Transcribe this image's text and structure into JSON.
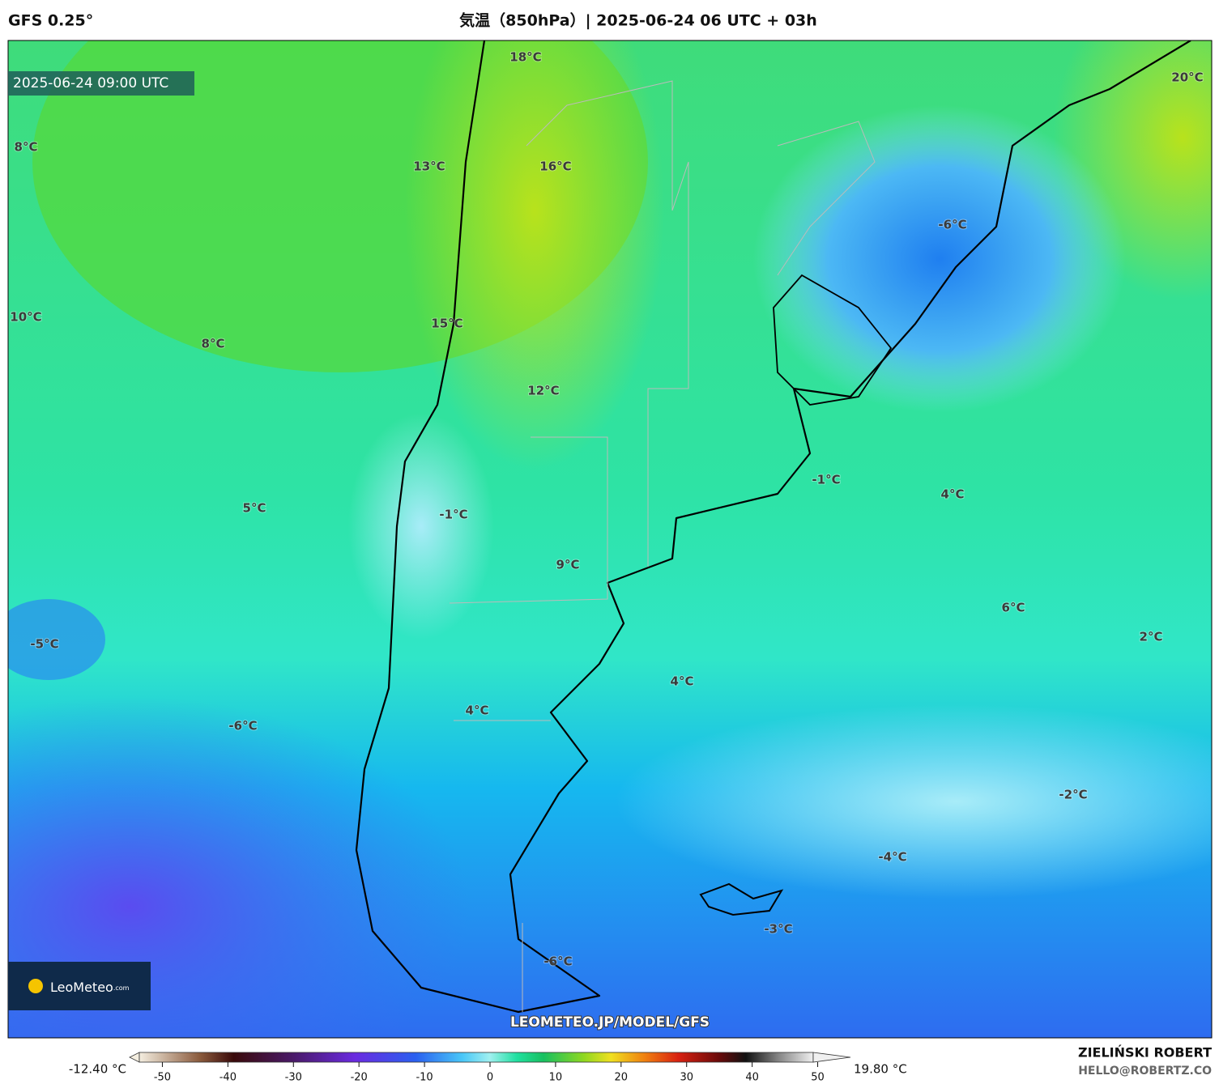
{
  "header": {
    "model": "GFS 0.25°",
    "title": "気温（850hPa）| 2025-06-24 06 UTC + 03h"
  },
  "map": {
    "valid_time": "2025-06-24 09:00 UTC",
    "labels": [
      "18°C",
      "20°C",
      "8°C",
      "13°C",
      "16°C",
      "-6°C",
      "10°C",
      "15°C",
      "8°C",
      "12°C",
      "-1°C",
      "4°C",
      "5°C",
      "-1°C",
      "9°C",
      "6°C",
      "2°C",
      "-5°C",
      "4°C",
      "-6°C",
      "4°C",
      "-2°C",
      "-4°C",
      "-3°C",
      "-6°C"
    ],
    "watermark": "LEOMETEO.JP/MODEL/GFS",
    "logo": {
      "name": "LeoMeteo",
      "suffix": ".com"
    }
  },
  "colorbar": {
    "min_label": "-12.40 °C",
    "max_label": "19.80 °C",
    "range": [
      -55,
      55
    ],
    "ticks": [
      -50,
      -40,
      -30,
      -20,
      -10,
      0,
      10,
      20,
      30,
      40,
      50
    ]
  },
  "footer": {
    "author": "ZIELIŃSKI ROBERT",
    "contact": "HELLO@ROBERTZ.CO"
  }
}
